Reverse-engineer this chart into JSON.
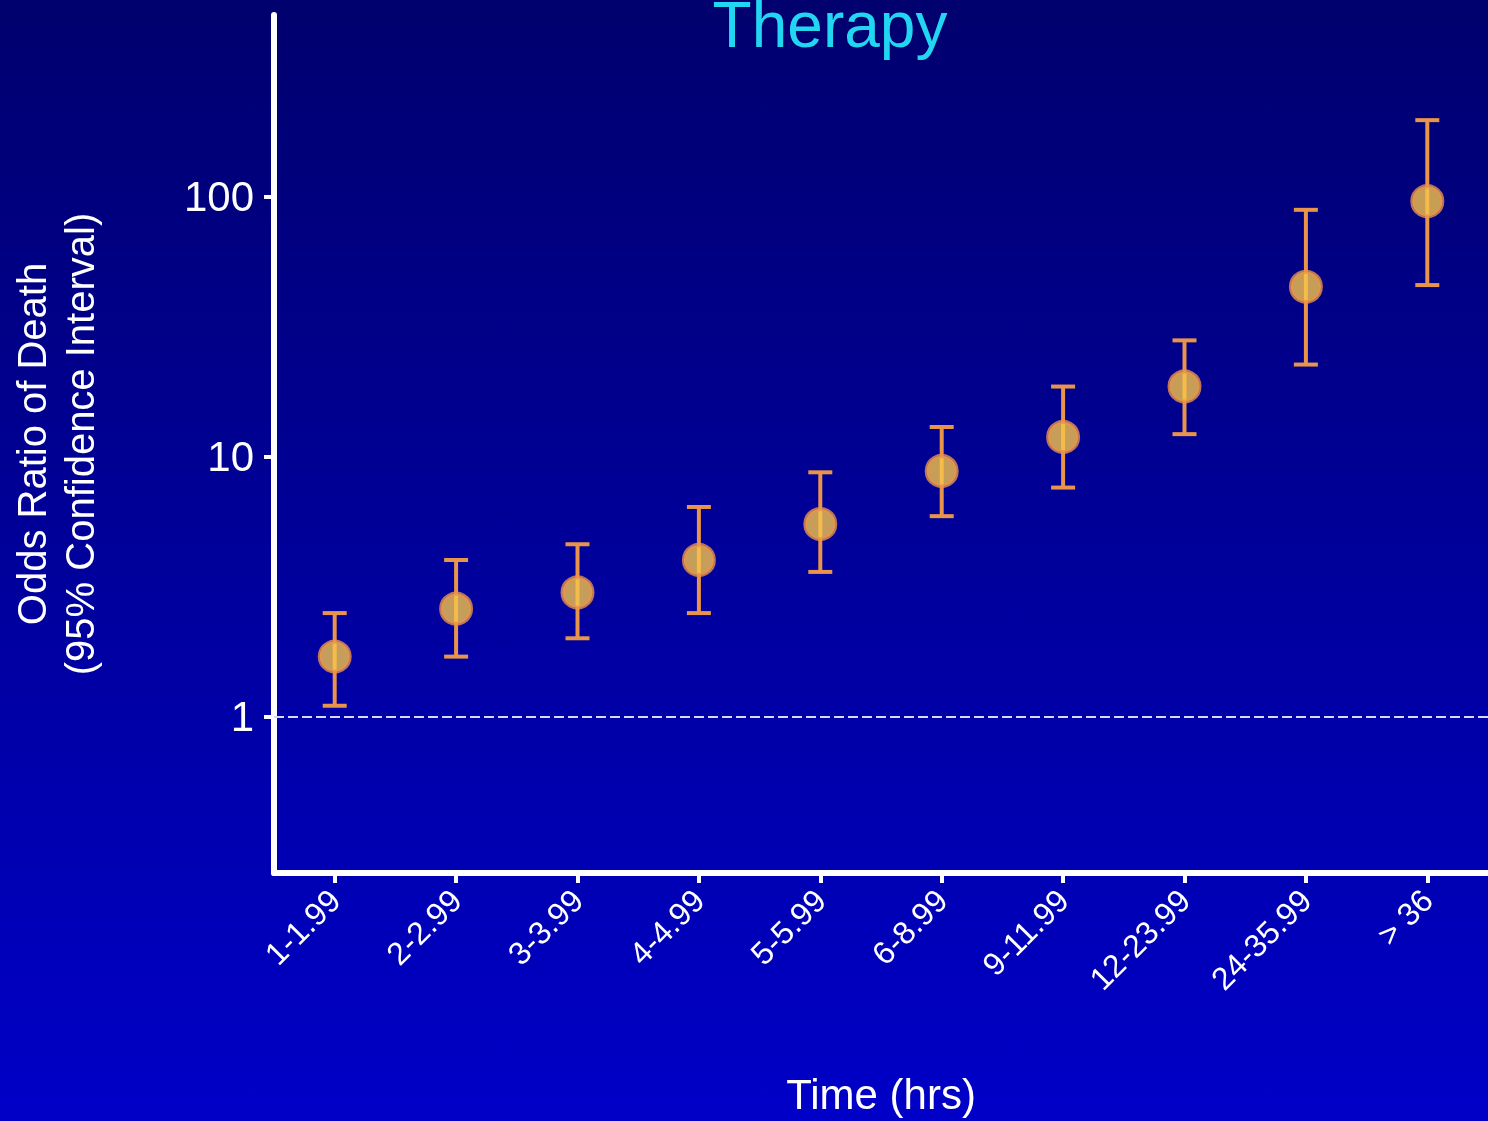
{
  "chart_data": {
    "type": "scatter",
    "title": "Therapy",
    "xlabel": "Time (hrs)",
    "ylabel": "Odds Ratio of Death\n(95% Confidence Interval)",
    "categories": [
      "1-1.99",
      "2-2.99",
      "3-3.99",
      "4-4.99",
      "5-5.99",
      "6-8.99",
      "9-11.99",
      "12-23.99",
      "24-35.99",
      "> 36"
    ],
    "series": [
      {
        "color": "#f7c64a",
        "values": [
          1.7,
          2.6,
          3.0,
          4.0,
          5.5,
          8.8,
          11.9,
          18.6,
          45,
          96
        ],
        "errors": [
          [
            1.1,
            2.5
          ],
          [
            1.7,
            4.0
          ],
          [
            2.0,
            4.6
          ],
          [
            2.5,
            6.4
          ],
          [
            3.6,
            8.7
          ],
          [
            5.9,
            13
          ],
          [
            7.6,
            18.6
          ],
          [
            12.2,
            28
          ],
          [
            22.6,
            89
          ],
          [
            45.7,
            197
          ]
        ]
      }
    ],
    "ylim": [
      0.25,
      500
    ],
    "yticks": [
      1,
      10,
      100
    ],
    "log": true,
    "marker": "circle",
    "ref_lines": [
      {
        "axis": "y",
        "value": 1,
        "color": "#d8d8ff",
        "line_style": "dashed"
      }
    ]
  }
}
